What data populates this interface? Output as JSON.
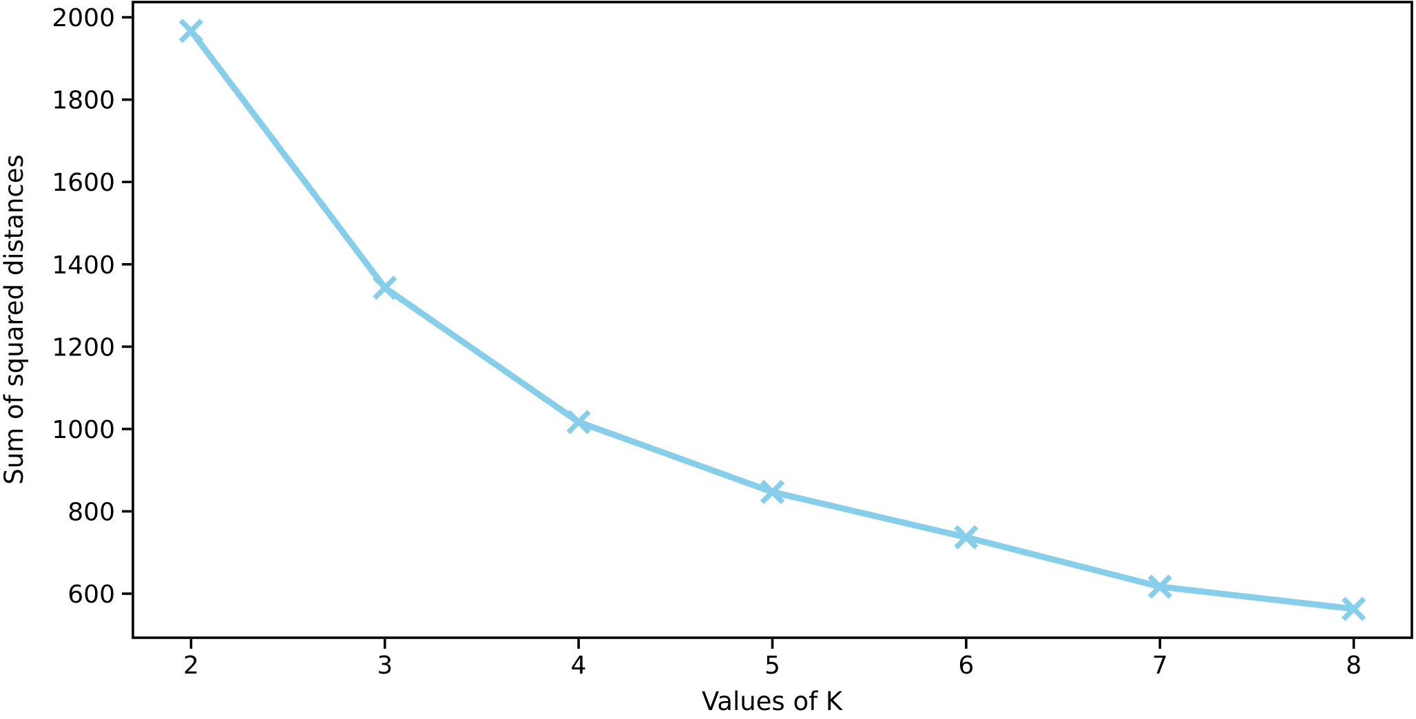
{
  "chart_data": {
    "type": "line",
    "title": "",
    "xlabel": "Values of K",
    "ylabel": "Sum of squared distances",
    "x": [
      2,
      3,
      4,
      5,
      6,
      7,
      8
    ],
    "y": [
      1967,
      1343,
      1017,
      847,
      737,
      617,
      563
    ],
    "series": [
      {
        "name": "Sum of squared distances",
        "values": [
          1967,
          1343,
          1017,
          847,
          737,
          617,
          563
        ]
      }
    ],
    "xticks": [
      2,
      3,
      4,
      5,
      6,
      7,
      8
    ],
    "yticks": [
      600,
      800,
      1000,
      1200,
      1400,
      1600,
      1800,
      2000
    ],
    "xlim": [
      1.7,
      8.3
    ],
    "ylim": [
      493,
      2037
    ],
    "grid": false,
    "legend_position": "none",
    "line_color": "#87CEEB",
    "marker": "x",
    "marker_color": "#87CEEB",
    "axis_color": "#000000",
    "text_color": "#000000",
    "background_color": "#ffffff"
  }
}
